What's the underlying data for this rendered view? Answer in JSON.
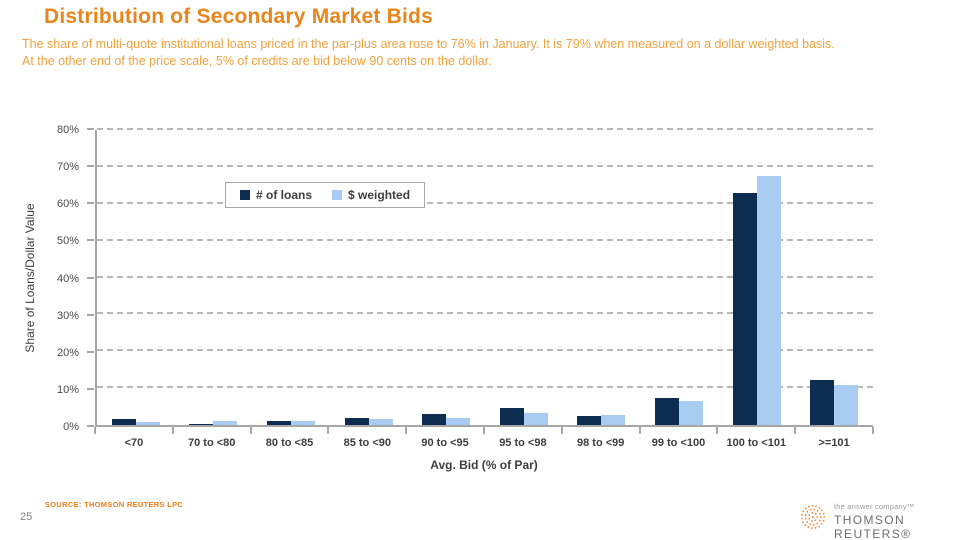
{
  "slide": {
    "title": "Distribution of Secondary Market Bids",
    "body_line1": "The share of multi-quote institutional loans priced in the par-plus area rose to 76% in January. It is 79% when measured on a dollar weighted basis.",
    "body_line2": "At the other end of the price scale, 5% of credits are bid below 90 cents on the dollar.",
    "source": "SOURCE: THOMSON REUTERS LPC",
    "page_number": "25"
  },
  "logo": {
    "tagline": "the answer company™",
    "brand": "THOMSON REUTERS®"
  },
  "colors": {
    "title_orange": "#E8861D",
    "body_orange": "#F0A23E",
    "navy": "#0C2C50",
    "light_blue": "#A8CCF2",
    "axis_gray": "#A6A6A6",
    "label_gray": "#3E3E3E",
    "logo_orange": "#F3801E",
    "logo_gray": "#6D6E71"
  },
  "chart_data": {
    "type": "bar",
    "title": "",
    "xlabel": "Avg. Bid (% of Par)",
    "ylabel": "Share of Loans/Dollar Value",
    "ylim": [
      0,
      80
    ],
    "ytick_labels": [
      "0%",
      "10%",
      "20%",
      "30%",
      "40%",
      "50%",
      "60%",
      "70%",
      "80%"
    ],
    "grid": "horizontal-dashed",
    "legend_position": "inside-upper-left",
    "categories": [
      "<70",
      "70 to <80",
      "80 to <85",
      "85 to <90",
      "90 to <95",
      "95 to <98",
      "98 to <99",
      "99 to <100",
      "100 to <101",
      ">=101"
    ],
    "series": [
      {
        "name": "# of loans",
        "color": "#0C2C50",
        "values": [
          1.5,
          0.4,
          1.1,
          1.9,
          3.0,
          4.5,
          2.4,
          7.4,
          63.0,
          12.3
        ]
      },
      {
        "name": "$ weighted",
        "color": "#A8CCF2",
        "values": [
          0.8,
          1.0,
          1.1,
          1.5,
          1.9,
          3.2,
          2.8,
          6.6,
          67.5,
          10.8
        ]
      }
    ]
  }
}
